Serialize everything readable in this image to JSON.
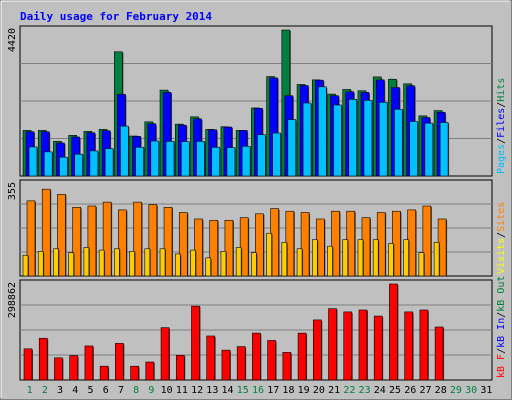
{
  "chart_data": {
    "type": "bar",
    "title": "Daily usage for February 2014",
    "categories": [
      "1",
      "2",
      "3",
      "4",
      "5",
      "6",
      "7",
      "8",
      "9",
      "10",
      "11",
      "12",
      "13",
      "14",
      "15",
      "16",
      "17",
      "18",
      "19",
      "20",
      "21",
      "22",
      "23",
      "24",
      "25",
      "26",
      "27",
      "28",
      "29",
      "30",
      "31"
    ],
    "weekend_days": [
      "1",
      "2",
      "8",
      "9",
      "15",
      "16",
      "22",
      "23",
      "29",
      "30"
    ],
    "panels": [
      {
        "id": "hits",
        "ylabel_max": "4420",
        "ylim": [
          0,
          4420
        ],
        "legend": [
          {
            "name": "Pages",
            "color": "#00c0ff"
          },
          {
            "name": "/",
            "color": "#000000"
          },
          {
            "name": "Files",
            "color": "#0000ff"
          },
          {
            "name": "/",
            "color": "#000000"
          },
          {
            "name": "Hits",
            "color": "#008040"
          }
        ],
        "series": [
          {
            "name": "Hits",
            "color": "#008040",
            "values": [
              1380,
              1380,
              1050,
              1230,
              1350,
              1410,
              3760,
              1210,
              1640,
              2600,
              1570,
              1790,
              1410,
              1490,
              1380,
              2060,
              3010,
              4420,
              2770,
              2910,
              2480,
              2620,
              2580,
              3000,
              2930,
              2790,
              1820,
              1980,
              0,
              0,
              0
            ]
          },
          {
            "name": "Files",
            "color": "#0000ff",
            "values": [
              1340,
              1340,
              1000,
              1180,
              1310,
              1370,
              2470,
              1200,
              1580,
              2530,
              1540,
              1730,
              1400,
              1480,
              1380,
              2050,
              2970,
              2430,
              2740,
              2900,
              2430,
              2550,
              2530,
              2910,
              2680,
              2730,
              1770,
              1930,
              0,
              0,
              0
            ]
          },
          {
            "name": "Pages",
            "color": "#00c0ff",
            "values": [
              880,
              730,
              570,
              660,
              760,
              830,
              1510,
              870,
              1060,
              1050,
              1040,
              1050,
              870,
              860,
              900,
              1250,
              1300,
              1710,
              2210,
              2700,
              2150,
              2320,
              2290,
              2230,
              2020,
              1650,
              1600,
              1620,
              0,
              0,
              0
            ]
          }
        ]
      },
      {
        "id": "visits",
        "ylabel_max": "355",
        "ylim": [
          0,
          355
        ],
        "legend": [
          {
            "name": "Visits",
            "color": "#ffff00"
          },
          {
            "name": "/",
            "color": "#000000"
          },
          {
            "name": "Sites",
            "color": "#ff8000"
          }
        ],
        "series": [
          {
            "name": "Sites",
            "color": "#ff8000",
            "values": [
              290,
              335,
              315,
              265,
              270,
              285,
              255,
              285,
              275,
              265,
              245,
              220,
              215,
              215,
              225,
              240,
              260,
              250,
              245,
              220,
              250,
              250,
              225,
              245,
              250,
              255,
              270,
              220,
              0,
              0,
              0
            ]
          },
          {
            "name": "Visits",
            "color": "#ffcc00",
            "values": [
              80,
              95,
              105,
              90,
              110,
              100,
              105,
              95,
              105,
              105,
              85,
              100,
              70,
              95,
              110,
              90,
              165,
              130,
              105,
              140,
              115,
              140,
              140,
              140,
              125,
              140,
              90,
              130,
              0,
              0,
              0
            ]
          }
        ]
      },
      {
        "id": "kbytes",
        "ylabel_max": "298862",
        "ylim": [
          0,
          298862
        ],
        "legend": [
          {
            "name": "kB F",
            "color": "#ff0000"
          },
          {
            "name": "/",
            "color": "#000000"
          },
          {
            "name": "kB In",
            "color": "#0000ff"
          },
          {
            "name": "/",
            "color": "#000000"
          },
          {
            "name": "kB Out",
            "color": "#008040"
          }
        ],
        "series": [
          {
            "name": "kB F",
            "color": "#ff0000",
            "values": [
              97000,
              130000,
              69000,
              76000,
              106000,
              43000,
              114000,
              43000,
              56000,
              163000,
              77000,
              230000,
              137000,
              93000,
              104000,
              146000,
              123000,
              86000,
              146000,
              187000,
              222000,
              212000,
              218000,
              199000,
              298862,
              212000,
              218000,
              165000,
              0,
              0,
              0
            ]
          }
        ]
      }
    ]
  }
}
